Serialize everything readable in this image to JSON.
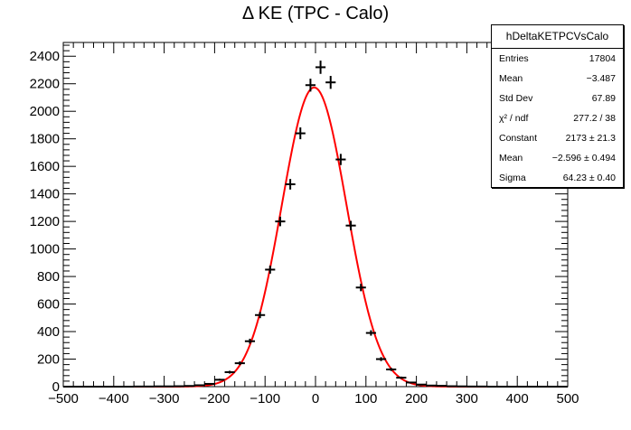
{
  "chart_data": {
    "type": "scatter",
    "title": "Δ KE (TPC - Calo)",
    "xlabel": "",
    "ylabel": "",
    "xlim": [
      -500,
      500
    ],
    "ylim": [
      0,
      2500
    ],
    "x_ticks": [
      -500,
      -400,
      -300,
      -200,
      -100,
      0,
      100,
      200,
      300,
      400,
      500
    ],
    "y_ticks": [
      0,
      200,
      400,
      600,
      800,
      1000,
      1200,
      1400,
      1600,
      1800,
      2000,
      2200,
      2400
    ],
    "bin_width": 20,
    "series": [
      {
        "kind": "histogram-points",
        "x": [
          -490,
          -470,
          -450,
          -430,
          -410,
          -390,
          -370,
          -350,
          -330,
          -310,
          -290,
          -270,
          -250,
          -230,
          -210,
          -190,
          -170,
          -150,
          -130,
          -110,
          -90,
          -70,
          -50,
          -30,
          -10,
          10,
          30,
          50,
          70,
          90,
          110,
          130,
          150,
          170,
          190,
          210,
          230,
          250,
          270,
          290,
          310,
          330,
          350,
          370,
          390,
          410,
          430,
          450,
          470,
          490
        ],
        "values": [
          0,
          0,
          0,
          0,
          0,
          0,
          0,
          1,
          1,
          2,
          2,
          3,
          5,
          10,
          20,
          50,
          105,
          170,
          330,
          520,
          850,
          1200,
          1470,
          1840,
          2190,
          2320,
          2210,
          1650,
          1170,
          720,
          390,
          200,
          125,
          65,
          30,
          15,
          8,
          6,
          3,
          2,
          1,
          1,
          0,
          0,
          0,
          0,
          0,
          0,
          0,
          0
        ]
      },
      {
        "kind": "gaussian-fit",
        "constant": 2173,
        "mean": -2.596,
        "sigma": 64.23
      }
    ],
    "stats_box": {
      "name": "hDeltaKETPCVsCalo",
      "rows": [
        {
          "key": "Entries",
          "value": "17804"
        },
        {
          "key": "Mean",
          "value": "−3.487"
        },
        {
          "key": "Std Dev",
          "value": "67.89"
        },
        {
          "key": "χ² / ndf",
          "value": "277.2 / 38"
        },
        {
          "key": "Constant",
          "value": "2173 ± 21.3"
        },
        {
          "key": "Mean",
          "value": "−2.596 ± 0.494"
        },
        {
          "key": "Sigma",
          "value": "64.23 ± 0.40"
        }
      ]
    },
    "colors": {
      "fit": "#ff0000",
      "points": "#000000",
      "axis": "#000000"
    }
  }
}
